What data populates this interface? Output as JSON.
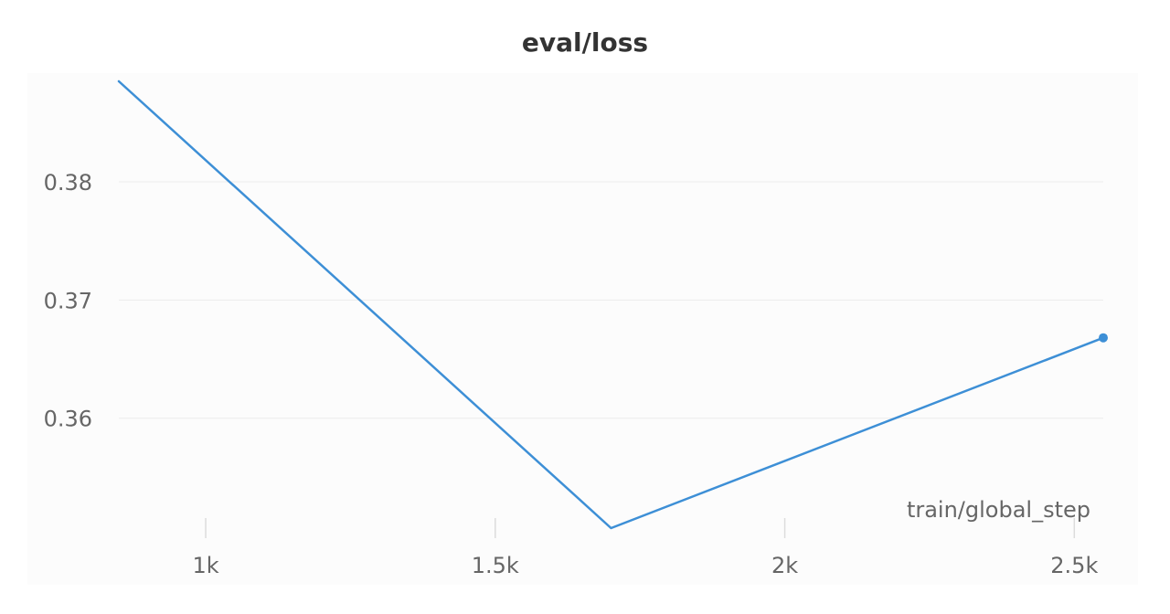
{
  "chart_data": {
    "type": "line",
    "title": "eval/loss",
    "xlabel": "train/global_step",
    "ylabel": "",
    "x": [
      850,
      1700,
      2550
    ],
    "series": [
      {
        "values": [
          0.3885,
          0.3507,
          0.3668
        ]
      }
    ],
    "xlim": [
      850,
      2550
    ],
    "ylim": [
      0.3507,
      0.3885
    ],
    "xticks": [
      1000,
      1500,
      2000,
      2500
    ],
    "xtick_labels": [
      "1k",
      "1.5k",
      "2k",
      "2.5k"
    ],
    "yticks": [
      0.36,
      0.37,
      0.38
    ],
    "ytick_labels": [
      "0.36",
      "0.37",
      "0.38"
    ],
    "grid": "horizontal",
    "colors": {
      "line": "#3d8fd6",
      "grid": "#ebebeb",
      "tick_text": "#666666",
      "title": "#333333"
    }
  }
}
